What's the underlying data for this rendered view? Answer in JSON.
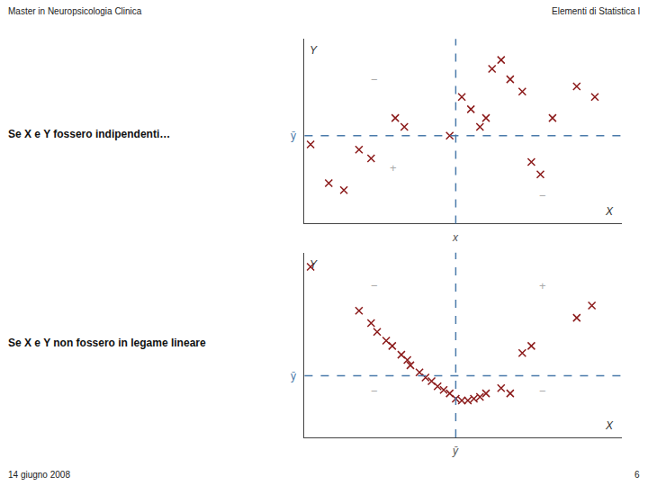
{
  "annotations": [
    "Master in Neuropsicologia Clinica",
    "Elementi di Statistica I",
    "14 giugno 2008",
    "6"
  ],
  "chart_data": [
    {
      "type": "scatter",
      "title": "Se X e Y fossero indipendenti…",
      "x_label": "X",
      "y_label": "Y",
      "xlim": [
        0,
        1.05
      ],
      "ylim": [
        0,
        1.05
      ],
      "xticks": [],
      "yticks": [],
      "tick_labels": false,
      "grid": false,
      "series": [
        {
          "color": "#8b1a1a",
          "marker": "x",
          "x": [
            0.02,
            0.08,
            0.13,
            0.18,
            0.22,
            0.3,
            0.33,
            0.48,
            0.52,
            0.55,
            0.58,
            0.6,
            0.62,
            0.65,
            0.68,
            0.72,
            0.75,
            0.78,
            0.82,
            0.9,
            0.96
          ],
          "values": [
            0.45,
            0.23,
            0.19,
            0.42,
            0.37,
            0.6,
            0.55,
            0.5,
            0.72,
            0.65,
            0.55,
            0.6,
            0.88,
            0.93,
            0.82,
            0.75,
            0.35,
            0.28,
            0.6,
            0.78,
            0.72
          ]
        }
      ],
      "reference_lines": [
        {
          "axis": "x",
          "value": 0.5,
          "label": "x",
          "color": "#4a7aaa",
          "line_style": "dashed"
        },
        {
          "axis": "y",
          "value": 0.5,
          "label": "ȳ",
          "color": "#4a7aaa",
          "line_style": "dashed"
        }
      ],
      "annotations": [
        "−",
        "+",
        "−"
      ]
    },
    {
      "type": "scatter",
      "title": "Se X e Y non fossero in legame lineare",
      "x_label": "X",
      "y_label": "Y",
      "xlim": [
        0,
        1.05
      ],
      "ylim": [
        0,
        1.05
      ],
      "xticks": [],
      "yticks": [],
      "tick_labels": false,
      "grid": false,
      "series": [
        {
          "color": "#8b1a1a",
          "marker": "x",
          "x": [
            0.02,
            0.18,
            0.22,
            0.24,
            0.27,
            0.29,
            0.32,
            0.34,
            0.35,
            0.38,
            0.4,
            0.42,
            0.44,
            0.46,
            0.48,
            0.5,
            0.52,
            0.54,
            0.56,
            0.58,
            0.6,
            0.65,
            0.68,
            0.72,
            0.75,
            0.9,
            0.95
          ],
          "values": [
            0.97,
            0.72,
            0.65,
            0.6,
            0.55,
            0.52,
            0.47,
            0.44,
            0.41,
            0.37,
            0.34,
            0.32,
            0.29,
            0.27,
            0.25,
            0.22,
            0.21,
            0.21,
            0.22,
            0.23,
            0.25,
            0.28,
            0.25,
            0.48,
            0.52,
            0.68,
            0.75
          ]
        }
      ],
      "reference_lines": [
        {
          "axis": "x",
          "value": 0.5,
          "label": "ȳ",
          "color": "#4a7aaa",
          "line_style": "dashed"
        },
        {
          "axis": "y",
          "value": 0.35,
          "label": "ȳ",
          "color": "#4a7aaa",
          "line_style": "dashed"
        }
      ],
      "annotations": [
        "−",
        "+",
        "−",
        "−"
      ]
    }
  ]
}
